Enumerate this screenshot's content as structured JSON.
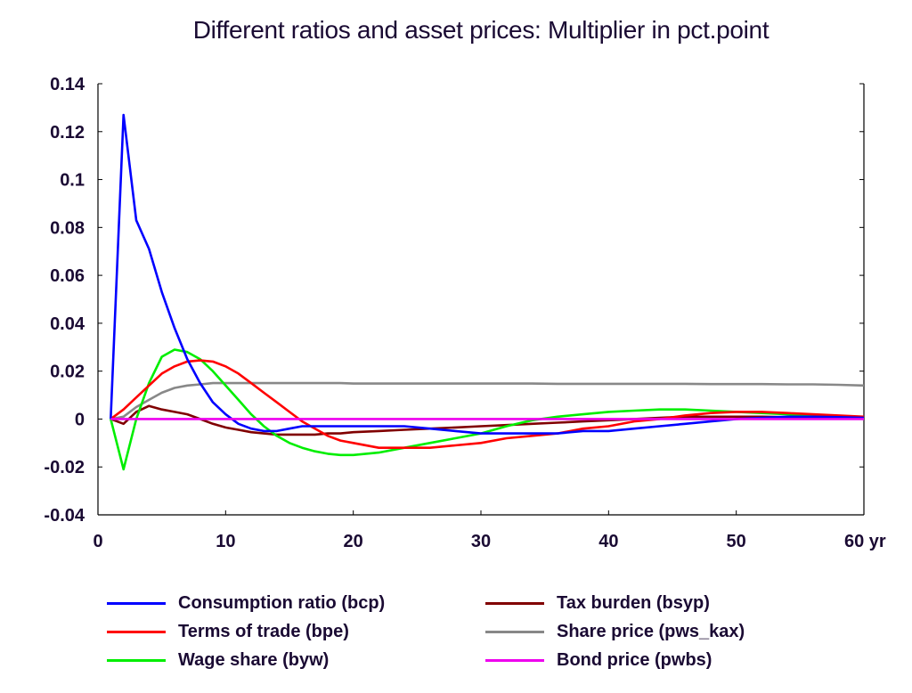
{
  "chart_data": {
    "type": "line",
    "title": "Different ratios and asset prices: Multiplier in pct.point",
    "x_unit_label": "yr",
    "xlim": [
      0,
      60
    ],
    "ylim": [
      -0.04,
      0.14
    ],
    "x_ticks": [
      0,
      10,
      20,
      30,
      40,
      50,
      60
    ],
    "x_tick_labels": [
      "0",
      "10",
      "20",
      "30",
      "40",
      "50",
      "60 yr"
    ],
    "y_ticks": [
      -0.04,
      -0.02,
      0,
      0.02,
      0.04,
      0.06,
      0.08,
      0.1,
      0.12,
      0.14
    ],
    "y_tick_labels": [
      "-0.04",
      "-0.02",
      "0",
      "0.02",
      "0.04",
      "0.06",
      "0.08",
      "0.1",
      "0.12",
      "0.14"
    ],
    "grid": false,
    "legend_position": "bottom",
    "series": [
      {
        "name": "Consumption ratio (bcp)",
        "color": "#0000ff",
        "x": [
          1,
          2,
          3,
          4,
          5,
          6,
          7,
          8,
          9,
          10,
          11,
          12,
          13,
          14,
          15,
          16,
          17,
          18,
          19,
          20,
          22,
          24,
          26,
          28,
          30,
          32,
          34,
          36,
          38,
          40,
          42,
          44,
          46,
          48,
          50,
          52,
          54,
          56,
          58,
          60
        ],
        "y": [
          0,
          0.127,
          0.083,
          0.071,
          0.053,
          0.038,
          0.025,
          0.015,
          0.007,
          0.002,
          -0.002,
          -0.004,
          -0.005,
          -0.005,
          -0.004,
          -0.003,
          -0.003,
          -0.003,
          -0.003,
          -0.003,
          -0.003,
          -0.003,
          -0.004,
          -0.005,
          -0.006,
          -0.006,
          -0.006,
          -0.006,
          -0.005,
          -0.005,
          -0.004,
          -0.003,
          -0.002,
          -0.001,
          0,
          0.0005,
          0.001,
          0.001,
          0.0008,
          0.0005
        ]
      },
      {
        "name": "Terms of trade (bpe)",
        "color": "#ff0000",
        "x": [
          1,
          2,
          3,
          4,
          5,
          6,
          7,
          8,
          9,
          10,
          11,
          12,
          13,
          14,
          15,
          16,
          17,
          18,
          19,
          20,
          22,
          24,
          26,
          28,
          30,
          32,
          34,
          36,
          38,
          40,
          42,
          44,
          46,
          48,
          50,
          52,
          54,
          56,
          58,
          60
        ],
        "y": [
          0,
          0.004,
          0.009,
          0.014,
          0.019,
          0.022,
          0.024,
          0.0245,
          0.024,
          0.022,
          0.019,
          0.015,
          0.011,
          0.007,
          0.003,
          -0.001,
          -0.004,
          -0.007,
          -0.009,
          -0.01,
          -0.012,
          -0.012,
          -0.012,
          -0.011,
          -0.01,
          -0.008,
          -0.007,
          -0.006,
          -0.004,
          -0.003,
          -0.001,
          0,
          0.0015,
          0.0025,
          0.003,
          0.003,
          0.0025,
          0.002,
          0.0015,
          0.001
        ]
      },
      {
        "name": "Wage share (byw)",
        "color": "#00ee00",
        "x": [
          1,
          2,
          3,
          4,
          5,
          6,
          7,
          8,
          9,
          10,
          11,
          12,
          13,
          14,
          15,
          16,
          17,
          18,
          19,
          20,
          22,
          24,
          26,
          28,
          30,
          32,
          34,
          36,
          38,
          40,
          42,
          44,
          46,
          48,
          50,
          52,
          54,
          56,
          58,
          60
        ],
        "y": [
          0,
          -0.021,
          0,
          0.015,
          0.026,
          0.029,
          0.028,
          0.025,
          0.02,
          0.014,
          0.008,
          0.002,
          -0.003,
          -0.007,
          -0.01,
          -0.012,
          -0.0135,
          -0.0145,
          -0.015,
          -0.015,
          -0.014,
          -0.012,
          -0.01,
          -0.008,
          -0.006,
          -0.003,
          -0.0005,
          0.001,
          0.002,
          0.003,
          0.0035,
          0.004,
          0.004,
          0.0035,
          0.003,
          0.0025,
          0.002,
          0.0015,
          0.001,
          0.0005
        ]
      },
      {
        "name": "Tax burden (bsyp)",
        "color": "#800000",
        "x": [
          1,
          2,
          3,
          4,
          5,
          6,
          7,
          8,
          9,
          10,
          11,
          12,
          13,
          14,
          15,
          16,
          17,
          18,
          19,
          20,
          22,
          24,
          26,
          28,
          30,
          32,
          34,
          36,
          38,
          40,
          42,
          44,
          46,
          48,
          50,
          52,
          54,
          56,
          58,
          60
        ],
        "y": [
          0,
          -0.002,
          0.003,
          0.0055,
          0.004,
          0.003,
          0.002,
          0,
          -0.002,
          -0.0035,
          -0.0045,
          -0.0055,
          -0.006,
          -0.0065,
          -0.0065,
          -0.0065,
          -0.0065,
          -0.006,
          -0.006,
          -0.0055,
          -0.005,
          -0.0045,
          -0.004,
          -0.0035,
          -0.003,
          -0.0025,
          -0.002,
          -0.0015,
          -0.001,
          -0.0005,
          0,
          0.0005,
          0.001,
          0.001,
          0.001,
          0.001,
          0.0008,
          0.0006,
          0.0004,
          0.0002
        ]
      },
      {
        "name": "Share price (pws_kax)",
        "color": "#888888",
        "x": [
          1,
          2,
          3,
          4,
          5,
          6,
          7,
          8,
          9,
          10,
          11,
          12,
          13,
          14,
          15,
          16,
          17,
          18,
          19,
          20,
          22,
          24,
          26,
          28,
          30,
          32,
          34,
          36,
          38,
          40,
          42,
          44,
          46,
          48,
          50,
          52,
          54,
          56,
          58,
          60
        ],
        "y": [
          0,
          0.001,
          0.005,
          0.008,
          0.011,
          0.013,
          0.014,
          0.0145,
          0.015,
          0.015,
          0.015,
          0.015,
          0.015,
          0.015,
          0.015,
          0.015,
          0.015,
          0.015,
          0.015,
          0.0148,
          0.0148,
          0.0148,
          0.0148,
          0.0148,
          0.0148,
          0.0148,
          0.0148,
          0.0147,
          0.0147,
          0.0147,
          0.0147,
          0.0147,
          0.0147,
          0.0146,
          0.0146,
          0.0146,
          0.0145,
          0.0145,
          0.0143,
          0.014
        ]
      },
      {
        "name": "Bond price (pwbs)",
        "color": "#ee00ee",
        "x": [
          1,
          60
        ],
        "y": [
          0,
          0
        ]
      }
    ]
  }
}
